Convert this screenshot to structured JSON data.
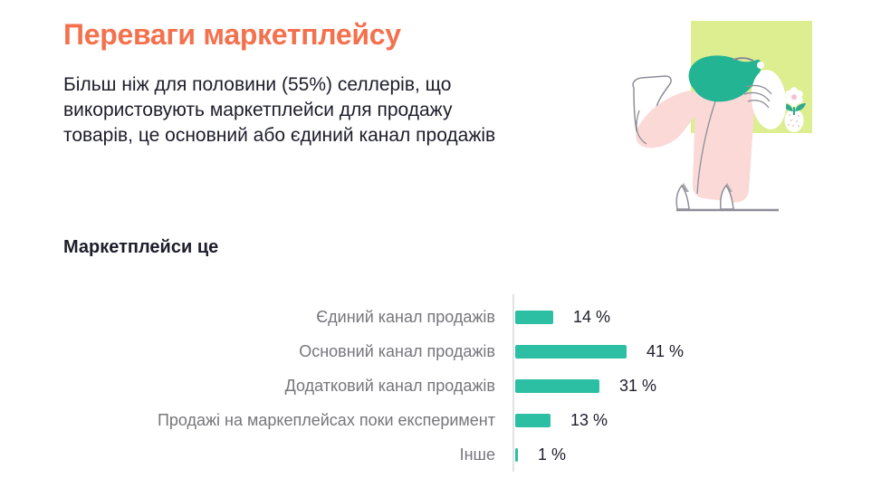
{
  "page": {
    "title": "Переваги маркетплейсу",
    "intro_lines": [
      "Більш ніж для половини (55%) селлерів, що",
      "використовують маркетплейси для продажу",
      "товарів, це основний або єдиний канал продажів"
    ],
    "section_title": "Маркетплейси це"
  },
  "colors": {
    "accent_orange": "#F4714D",
    "text_dark": "#1D1D2B",
    "label_gray": "#76767B",
    "bar_teal": "#2DBFA3",
    "axis_gray": "#E2E2E5",
    "illustration_bg_green": "#DCEE90",
    "illustration_pink": "#FAD9D7",
    "illustration_hair_teal": "#23B493",
    "illustration_outline_gray": "#8E8E99"
  },
  "illustration": {
    "name": "person-bent-over-illustration",
    "elements": [
      "green-square-background",
      "person-with-teal-hair",
      "pink-clothes",
      "flower-in-vase",
      "floor-line"
    ]
  },
  "chart_data": {
    "type": "bar",
    "orientation": "horizontal",
    "title": "Маркетплейси це",
    "categories": [
      "Єдиний канал продажів",
      "Основний канал продажів",
      "Додатковий канал продажів",
      "Продажі на маркеплейсах поки експеримент",
      "Інше"
    ],
    "values": [
      14,
      41,
      31,
      13,
      1
    ],
    "value_labels": [
      "14 %",
      "41 %",
      "31 %",
      "13 %",
      "1 %"
    ],
    "unit": "%",
    "xlim": [
      0,
      45
    ],
    "grid": false,
    "legend": false,
    "bar_color": "#2DBFA3"
  }
}
